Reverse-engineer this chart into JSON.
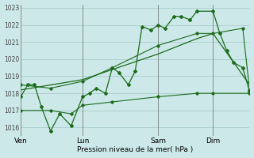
{
  "bg_color": "#cce8e8",
  "grid_color": "#aacccc",
  "line_color": "#1a6b1a",
  "title": "Pression niveau de la mer( hPa )",
  "ylim": [
    1015.5,
    1023.2
  ],
  "yticks": [
    1016,
    1017,
    1018,
    1019,
    1020,
    1021,
    1022,
    1023
  ],
  "day_labels": [
    "Ven",
    "Lun",
    "Sam",
    "Dim"
  ],
  "day_positions": [
    0.0,
    0.27,
    0.6,
    0.84
  ],
  "xlim": [
    0.0,
    1.0
  ],
  "series_main": [
    [
      0.0,
      1017.8
    ],
    [
      0.03,
      1018.5
    ],
    [
      0.06,
      1018.5
    ],
    [
      0.09,
      1017.2
    ],
    [
      0.13,
      1015.8
    ],
    [
      0.17,
      1016.8
    ],
    [
      0.22,
      1016.1
    ],
    [
      0.27,
      1017.8
    ],
    [
      0.3,
      1018.0
    ],
    [
      0.33,
      1018.3
    ],
    [
      0.37,
      1018.0
    ],
    [
      0.4,
      1019.5
    ],
    [
      0.43,
      1019.2
    ],
    [
      0.47,
      1018.5
    ],
    [
      0.5,
      1019.3
    ],
    [
      0.53,
      1021.9
    ],
    [
      0.57,
      1021.7
    ],
    [
      0.6,
      1022.0
    ],
    [
      0.63,
      1021.8
    ],
    [
      0.67,
      1022.5
    ],
    [
      0.7,
      1022.5
    ],
    [
      0.74,
      1022.3
    ],
    [
      0.77,
      1022.8
    ],
    [
      0.84,
      1022.8
    ],
    [
      0.87,
      1021.5
    ],
    [
      0.9,
      1020.5
    ],
    [
      0.93,
      1019.8
    ],
    [
      0.97,
      1019.5
    ],
    [
      1.0,
      1018.1
    ]
  ],
  "series_min": [
    [
      0.0,
      1017.0
    ],
    [
      0.13,
      1017.0
    ],
    [
      0.22,
      1016.8
    ],
    [
      0.27,
      1017.3
    ],
    [
      0.4,
      1017.5
    ],
    [
      0.6,
      1017.8
    ],
    [
      0.77,
      1018.0
    ],
    [
      0.84,
      1018.0
    ],
    [
      1.0,
      1018.0
    ]
  ],
  "series_max": [
    [
      0.0,
      1018.5
    ],
    [
      0.13,
      1018.3
    ],
    [
      0.27,
      1018.7
    ],
    [
      0.4,
      1019.5
    ],
    [
      0.6,
      1020.8
    ],
    [
      0.77,
      1021.5
    ],
    [
      0.84,
      1021.5
    ],
    [
      0.97,
      1021.8
    ],
    [
      1.0,
      1018.2
    ]
  ],
  "series_trend": [
    [
      0.0,
      1018.2
    ],
    [
      0.27,
      1018.8
    ],
    [
      0.6,
      1020.3
    ],
    [
      0.77,
      1021.2
    ],
    [
      0.84,
      1021.5
    ],
    [
      1.0,
      1018.5
    ]
  ]
}
